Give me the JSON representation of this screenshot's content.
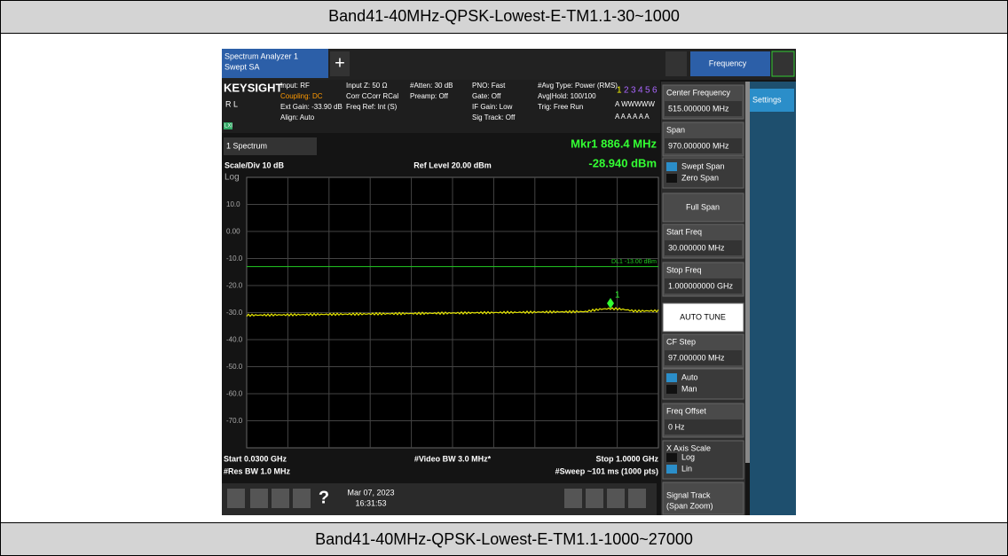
{
  "header": {
    "title": "Band41-40MHz-QPSK-Lowest-E-TM1.1-30~1000"
  },
  "footer": {
    "title": "Band41-40MHz-QPSK-Lowest-E-TM1.1-1000~27000"
  },
  "screen": {
    "tab": [
      "Spectrum Analyzer 1",
      "Swept SA"
    ],
    "add_tab": "+",
    "menu": "Frequency",
    "brand": "KEYSIGHT",
    "rl": "R L",
    "lxi": "LXI",
    "info": [
      [
        "Input: RF",
        "Coupling: DC",
        "Ext Gain: -33.90 dB",
        "Align: Auto"
      ],
      [
        "Input Z: 50 Ω",
        "Corr CCorr RCal",
        "Freq Ref: Int (S)"
      ],
      [
        "#Atten: 30 dB",
        "Preamp: Off"
      ],
      [
        "PNO: Fast",
        "Gate: Off",
        "IF Gain: Low",
        "Sig Track: Off"
      ],
      [
        "#Avg Type: Power (RMS)",
        "Avg|Hold: 100/100",
        "Trig: Free Run"
      ]
    ],
    "traces": [
      "1",
      "2",
      "3",
      "4",
      "5",
      "6"
    ],
    "trace_type": "A WWWWW",
    "trace_det": "A A A A A A",
    "window": "1 Spectrum",
    "marker": {
      "label": "Mkr1  886.4 MHz",
      "value": "-28.940 dBm",
      "id": "1"
    },
    "scale": "Scale/Div 10 dB",
    "ref": "Ref Level 20.00 dBm",
    "log": "Log",
    "y_labels": [
      "10.0",
      "0.00",
      "-10.0",
      "-20.0",
      "-30.0",
      "-40.0",
      "-50.0",
      "-60.0",
      "-70.0"
    ],
    "limit": "DL1 -13.00 dBm",
    "bottom": [
      "Start 0.0300 GHz",
      "#Res BW 1.0 MHz",
      "#Video BW 3.0 MHz*",
      "Stop 1.0000 GHz",
      "#Sweep ~101 ms (1000 pts)"
    ],
    "taskbar": {
      "help": "?",
      "date": "Mar 07, 2023",
      "time": "16:31:53"
    },
    "settings": "Settings",
    "panel": {
      "center": [
        "Center Frequency",
        "515.000000 MHz"
      ],
      "span": [
        "Span",
        "970.000000 MHz"
      ],
      "span_opts": [
        "Swept Span",
        "Zero Span"
      ],
      "full_span": "Full Span",
      "start": [
        "Start Freq",
        "30.000000 MHz"
      ],
      "stop": [
        "Stop Freq",
        "1.000000000 GHz"
      ],
      "auto_tune": "AUTO TUNE",
      "cf_step": [
        "CF Step",
        "97.000000 MHz"
      ],
      "cf_opts": [
        "Auto",
        "Man"
      ],
      "offset": [
        "Freq Offset",
        "0 Hz"
      ],
      "x_scale": [
        "X Axis Scale",
        "Log",
        "Lin"
      ],
      "track": [
        "Signal Track",
        "(Span Zoom)"
      ]
    }
  }
}
